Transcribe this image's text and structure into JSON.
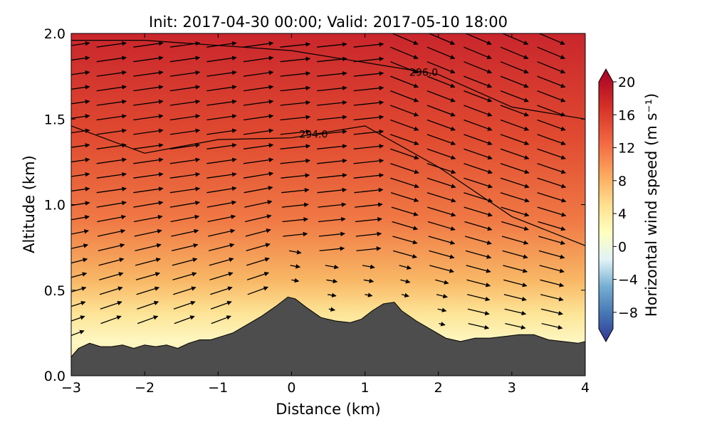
{
  "chart_data": {
    "type": "heatmap",
    "title": "Init: 2017-04-30 00:00; Valid: 2017-05-10 18:00",
    "xlabel": "Distance (km)",
    "ylabel": "Altitude (km)",
    "xlim": [
      -3,
      4
    ],
    "ylim": [
      0.0,
      2.0
    ],
    "xticks": [
      -3,
      -2,
      -1,
      0,
      1,
      2,
      3,
      4
    ],
    "xtick_labels": [
      "−3",
      "−2",
      "−1",
      "0",
      "1",
      "2",
      "3",
      "4"
    ],
    "yticks": [
      0.0,
      0.5,
      1.0,
      1.5,
      2.0
    ],
    "ytick_labels": [
      "0.0",
      "0.5",
      "1.0",
      "1.5",
      "2.0"
    ],
    "colorbar": {
      "label": "Horizontal wind speed (m s⁻¹)",
      "range": [
        -10,
        20
      ],
      "ticks": [
        -8,
        -4,
        0,
        4,
        8,
        12,
        16,
        20
      ],
      "tick_labels": [
        "−8",
        "−4",
        "0",
        "4",
        "8",
        "12",
        "16",
        "20"
      ],
      "colormap": "RdYlBu_r"
    },
    "terrain": {
      "color": "#4d4d4d",
      "x": [
        -3.0,
        -2.9,
        -2.75,
        -2.6,
        -2.45,
        -2.3,
        -2.15,
        -2.0,
        -1.85,
        -1.7,
        -1.55,
        -1.4,
        -1.25,
        -1.1,
        -0.95,
        -0.8,
        -0.6,
        -0.4,
        -0.2,
        -0.05,
        0.05,
        0.2,
        0.4,
        0.6,
        0.8,
        0.95,
        1.1,
        1.25,
        1.4,
        1.5,
        1.7,
        1.9,
        2.1,
        2.3,
        2.5,
        2.7,
        2.9,
        3.1,
        3.3,
        3.5,
        3.7,
        3.9,
        4.0
      ],
      "y": [
        0.11,
        0.16,
        0.19,
        0.17,
        0.17,
        0.18,
        0.16,
        0.18,
        0.17,
        0.18,
        0.16,
        0.19,
        0.21,
        0.21,
        0.23,
        0.25,
        0.3,
        0.35,
        0.41,
        0.46,
        0.45,
        0.4,
        0.34,
        0.32,
        0.31,
        0.33,
        0.38,
        0.42,
        0.43,
        0.38,
        0.32,
        0.27,
        0.22,
        0.2,
        0.22,
        0.22,
        0.23,
        0.24,
        0.24,
        0.21,
        0.2,
        0.19,
        0.2
      ]
    },
    "isentropes": [
      {
        "level": 294.0,
        "label": "294.0",
        "x": [
          -3.0,
          -2.0,
          -1.0,
          0.0,
          1.0,
          2.0,
          3.0,
          4.0
        ],
        "y": [
          1.46,
          1.3,
          1.38,
          1.39,
          1.46,
          1.22,
          0.93,
          0.76
        ]
      },
      {
        "level": 296.0,
        "label": "296.0",
        "x": [
          -3.0,
          -2.0,
          -1.0,
          0.0,
          1.0,
          2.0,
          3.0,
          4.0
        ],
        "y": [
          1.96,
          1.96,
          1.93,
          1.9,
          1.83,
          1.76,
          1.57,
          1.5
        ]
      }
    ],
    "wind_field_note": "",
    "wind_field": "vectors"
  }
}
